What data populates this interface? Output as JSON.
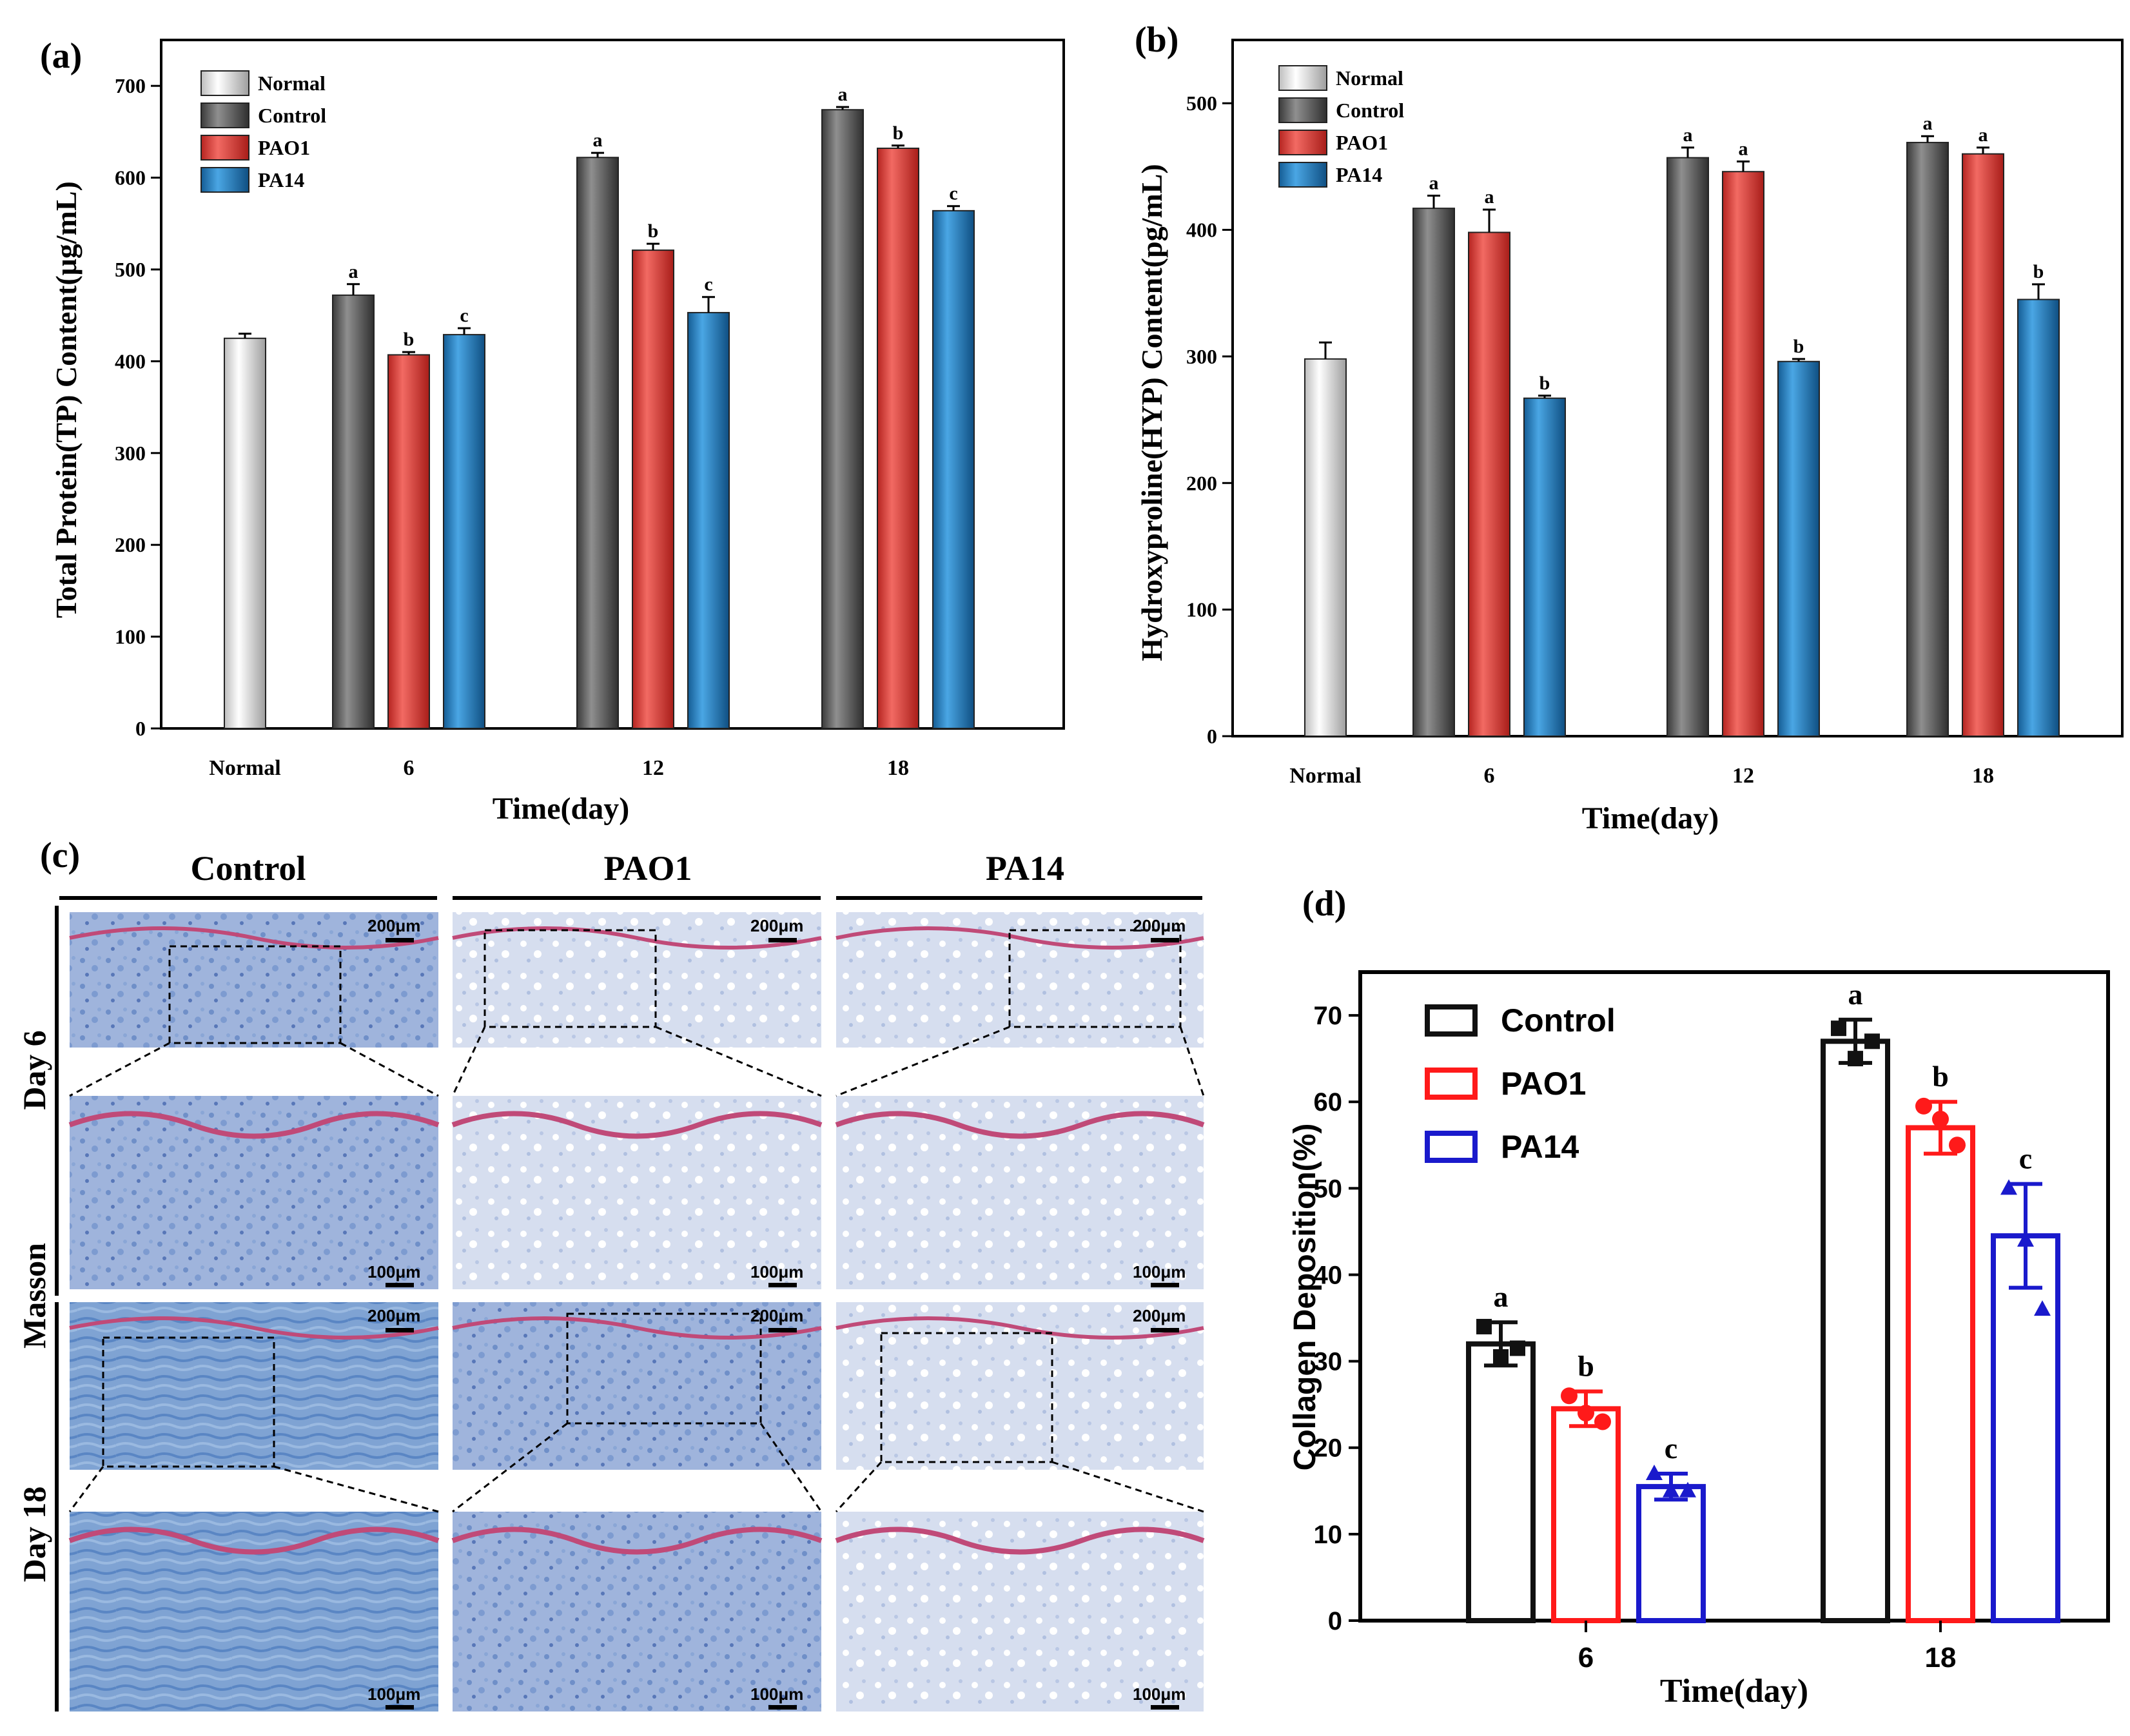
{
  "colors": {
    "normal": "#f2f2f2",
    "control": "#6e6e6e",
    "pao1": "#e8453f",
    "pa14": "#2c86c6",
    "d_control": "#111111",
    "d_pao1": "#ff1a1a",
    "d_pa14": "#1a1acc",
    "stain_blue": "#6f8fc8",
    "stain_red": "#c04a78"
  },
  "chart_data": [
    {
      "panel": "(a)",
      "type": "bar",
      "title": "",
      "xlabel": "Time(day)",
      "ylabel": "Total Protein(TP) Content(μg/mL)",
      "ylim": [
        0,
        750
      ],
      "yticks": [
        "0",
        "100",
        "200",
        "300",
        "400",
        "500",
        "600",
        "700"
      ],
      "categories": [
        "Normal",
        "6",
        "12",
        "18"
      ],
      "legend": [
        "Normal",
        "Control",
        "PAO1",
        "PA14"
      ],
      "legend_position": "top-left",
      "series": [
        {
          "name": "Normal",
          "values": [
            425,
            null,
            null,
            null
          ],
          "errors": [
            5,
            null,
            null,
            null
          ],
          "letters": [
            "",
            null,
            null,
            null
          ]
        },
        {
          "name": "Control",
          "values": [
            null,
            472,
            622,
            674
          ],
          "errors": [
            null,
            12,
            5,
            3
          ],
          "letters": [
            null,
            "a",
            "a",
            "a"
          ]
        },
        {
          "name": "PAO1",
          "values": [
            null,
            407,
            521,
            632
          ],
          "errors": [
            null,
            3,
            7,
            3
          ],
          "letters": [
            null,
            "b",
            "b",
            "b"
          ]
        },
        {
          "name": "PA14",
          "values": [
            null,
            429,
            453,
            564
          ],
          "errors": [
            null,
            7,
            17,
            5
          ],
          "letters": [
            null,
            "c",
            "c",
            "c"
          ]
        }
      ]
    },
    {
      "panel": "(b)",
      "type": "bar",
      "title": "",
      "xlabel": "Time(day)",
      "ylabel": "Hydroxyproline(HYP) Content(pg/mL)",
      "ylim": [
        0,
        550
      ],
      "yticks": [
        "0",
        "100",
        "200",
        "300",
        "400",
        "500"
      ],
      "categories": [
        "Normal",
        "6",
        "12",
        "18"
      ],
      "legend": [
        "Normal",
        "Control",
        "PAO1",
        "PA14"
      ],
      "legend_position": "top-left",
      "series": [
        {
          "name": "Normal",
          "values": [
            298,
            null,
            null,
            null
          ],
          "errors": [
            13,
            null,
            null,
            null
          ],
          "letters": [
            "",
            null,
            null,
            null
          ]
        },
        {
          "name": "Control",
          "values": [
            null,
            417,
            457,
            469
          ],
          "errors": [
            null,
            10,
            8,
            5
          ],
          "letters": [
            null,
            "a",
            "a",
            "a"
          ]
        },
        {
          "name": "PAO1",
          "values": [
            null,
            398,
            446,
            460
          ],
          "errors": [
            null,
            18,
            8,
            5
          ],
          "letters": [
            null,
            "a",
            "a",
            "a"
          ]
        },
        {
          "name": "PA14",
          "values": [
            null,
            267,
            296,
            345
          ],
          "errors": [
            null,
            2,
            2,
            12
          ],
          "letters": [
            null,
            "b",
            "b",
            "b"
          ]
        }
      ]
    },
    {
      "panel": "(d)",
      "type": "bar",
      "title": "",
      "xlabel": "Time(day)",
      "ylabel": "Collagen Deposition(%)",
      "ylim": [
        0,
        75
      ],
      "yticks": [
        "0",
        "10",
        "20",
        "30",
        "40",
        "50",
        "60",
        "70"
      ],
      "categories": [
        "6",
        "18"
      ],
      "legend": [
        "Control",
        "PAO1",
        "PA14"
      ],
      "legend_position": "top-left",
      "series": [
        {
          "name": "Control",
          "values": [
            32,
            67
          ],
          "errors": [
            2.5,
            2.5
          ],
          "letters": [
            "a",
            "a"
          ],
          "points": [
            [
              34,
              30.5,
              31.5
            ],
            [
              68.5,
              65,
              67
            ]
          ]
        },
        {
          "name": "PAO1",
          "values": [
            24.5,
            57
          ],
          "errors": [
            2,
            3
          ],
          "letters": [
            "b",
            "b"
          ],
          "points": [
            [
              26,
              24,
              23
            ],
            [
              59.5,
              58,
              55
            ]
          ]
        },
        {
          "name": "PA14",
          "values": [
            15.5,
            44.5
          ],
          "errors": [
            1.5,
            6
          ],
          "letters": [
            "c",
            "c"
          ],
          "points": [
            [
              17,
              15,
              15
            ],
            [
              50,
              44,
              36
            ]
          ]
        }
      ]
    }
  ],
  "panel_c": {
    "label": "(c)",
    "column_headers": [
      "Control",
      "PAO1",
      "PA14"
    ],
    "row_labels": [
      "Day 6",
      "Day 18"
    ],
    "stain_label": "Masson",
    "scale_top": "200μm",
    "scale_bottom": "100μm"
  }
}
